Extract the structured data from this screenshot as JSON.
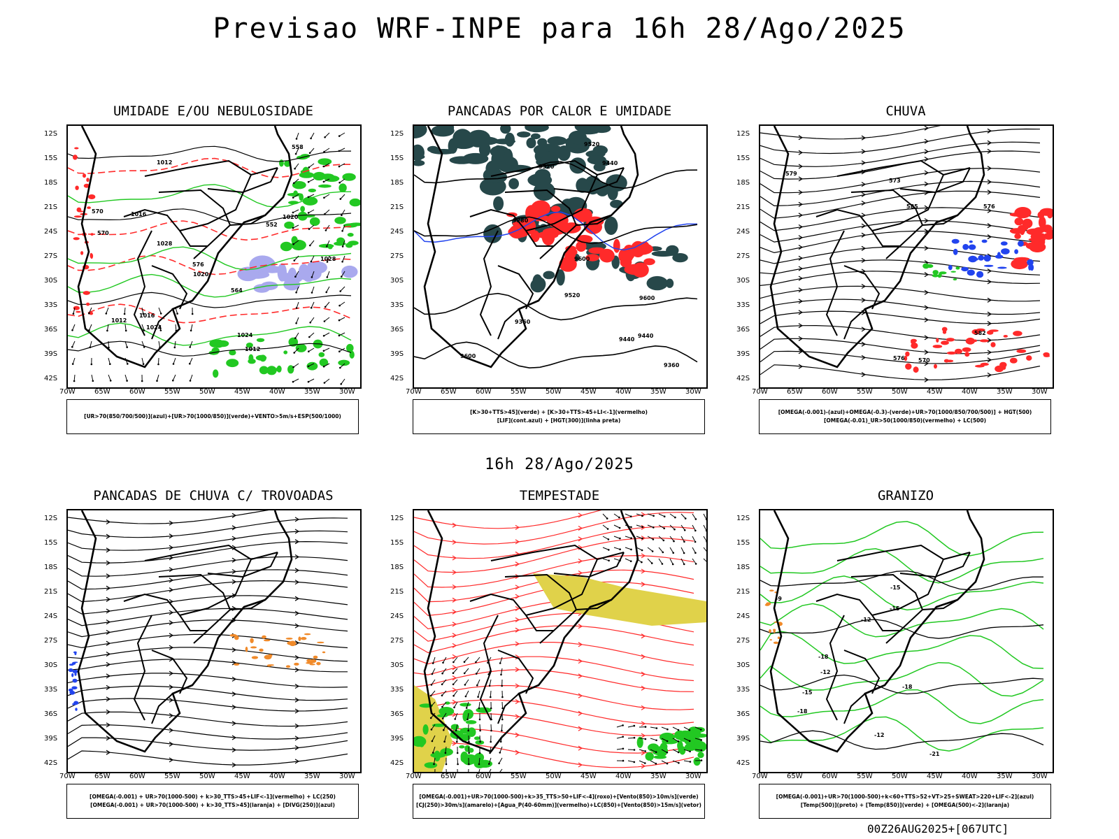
{
  "header": {
    "title": "Previsao WRF-INPE  para 16h 28/Ago/2025",
    "subtitle": "16h 28/Ago/2025",
    "footer": "00Z26AUG2025+[067UTC]"
  },
  "axes": {
    "lat_labels": [
      "12S",
      "15S",
      "18S",
      "21S",
      "24S",
      "27S",
      "30S",
      "33S",
      "36S",
      "39S",
      "42S"
    ],
    "lon_labels": [
      "70W",
      "65W",
      "60W",
      "55W",
      "50W",
      "45W",
      "40W",
      "35W",
      "30W"
    ]
  },
  "colors": {
    "black": "#000000",
    "green": "#22c822",
    "red": "#ff2a2a",
    "blue": "#2244ee",
    "lavender": "#a9a9ee",
    "dark_teal": "#27484a",
    "orange": "#f08a2a",
    "yellow": "#e0d24a"
  },
  "panels": [
    {
      "title": "UMIDADE E/OU NEBULOSIDADE",
      "legend": [
        "[UR>70(850/700/500)](azul)+[UR>70(1000/850)](verde)+VENTO>5m/s+ESP(500/1000)"
      ],
      "contour_labels": [
        "1012",
        "1012",
        "1016",
        "1016",
        "1020",
        "1024",
        "1028",
        "1028",
        "1020",
        "1024",
        "1012",
        "570",
        "576",
        "564",
        "552",
        "558",
        "570"
      ]
    },
    {
      "title": "PANCADAS POR CALOR E UMIDADE",
      "legend": [
        "[K>30+TTS>45](verde) + [K>30+TTS>45+LI<-1](vermelho)",
        "[LIF](cont.azul) + [HGT(300)](linha preta)"
      ],
      "contour_labels": [
        "9600",
        "9600",
        "9600",
        "9520",
        "9520",
        "9520",
        "9440",
        "9440",
        "9440",
        "9360",
        "9360",
        "9280"
      ]
    },
    {
      "title": "CHUVA",
      "legend": [
        "[OMEGA(-0.001)-(azul)+OMEGA(-0.3)-(verde)+UR>70(1000/850/700/500)] + HGT(500)",
        "[OMEGA(-0.01)_UR>50(1000/850)(vermelho) + LC(500)"
      ],
      "contour_labels": [
        "585",
        "582",
        "579",
        "576",
        "576",
        "573",
        "570"
      ]
    },
    {
      "title": "PANCADAS DE CHUVA C/ TROVOADAS",
      "legend": [
        "[OMEGA(-0.001) + UR>70(1000-500) + k>30_TTS>45+LIF<-1](vermelho) + LC(250)",
        "[OMEGA(-0.001) + UR>70(1000-500) + k>30_TTS>45](laranja) + [DIVG(250)](azul)"
      ],
      "contour_labels": []
    },
    {
      "title": "TEMPESTADE",
      "legend": [
        "[OMEGA(-0.001)+UR>70(1000-500)+k>35_TTS>50+LIF<-4](roxo)+[Vento(850)>10m/s](verde)",
        "[CJ(250)>30m/s](amarelo)+[Agua_P(40-60mm)](vermelho)+LC(850)+[Vento(850)>15m/s](vetor)"
      ],
      "contour_labels": []
    },
    {
      "title": "GRANIZO",
      "legend": [
        "[OMEGA(-0.001)+UR>70(1000-500)+k<60+TTS>52+VT>25+SWEAT>220+LIF<-2](azul)",
        "[Temp(500)](preto) + [Temp(850)](verde) + [OMEGA(500)<-2](laranja)"
      ],
      "contour_labels": [
        "-9",
        "-12",
        "-12",
        "-12",
        "-15",
        "-15",
        "-15",
        "-18",
        "-18",
        "-18",
        "-21"
      ]
    }
  ]
}
